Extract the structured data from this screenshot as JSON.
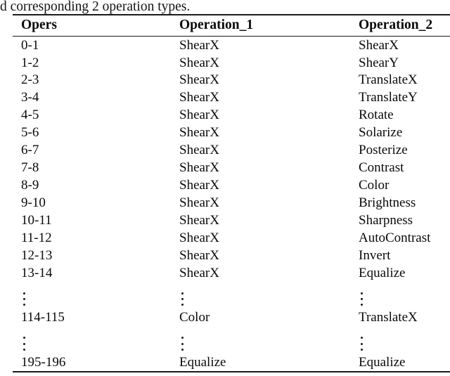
{
  "caption": "d corresponding 2 operation types.",
  "table": {
    "headers": [
      "Opers",
      "Operation_1",
      "Operation_2"
    ],
    "rows": [
      [
        "0-1",
        "ShearX",
        "ShearX"
      ],
      [
        "1-2",
        "ShearX",
        "ShearY"
      ],
      [
        "2-3",
        "ShearX",
        "TranslateX"
      ],
      [
        "3-4",
        "ShearX",
        "TranslateY"
      ],
      [
        "4-5",
        "ShearX",
        "Rotate"
      ],
      [
        "5-6",
        "ShearX",
        "Solarize"
      ],
      [
        "6-7",
        "ShearX",
        "Posterize"
      ],
      [
        "7-8",
        "ShearX",
        "Contrast"
      ],
      [
        "8-9",
        "ShearX",
        "Color"
      ],
      [
        "9-10",
        "ShearX",
        "Brightness"
      ],
      [
        "10-11",
        "ShearX",
        "Sharpness"
      ],
      [
        "11-12",
        "ShearX",
        "AutoContrast"
      ],
      [
        "12-13",
        "ShearX",
        "Invert"
      ],
      [
        "13-14",
        "ShearX",
        "Equalize"
      ],
      {
        "vdots": true
      },
      [
        "114-115",
        "Color",
        "TranslateX"
      ],
      {
        "vdots": true
      },
      [
        "195-196",
        "Equalize",
        "Equalize"
      ]
    ]
  },
  "colors": {
    "text": "#0a0a0a",
    "rule": "#1a1a1a",
    "background": "#ffffff"
  }
}
